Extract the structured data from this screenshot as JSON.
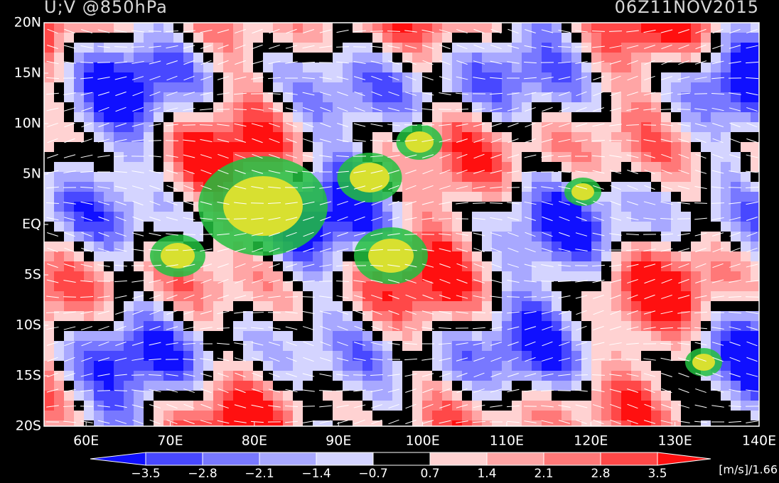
{
  "header": {
    "title": "U;V @850hPa",
    "time": "06Z11NOV2015"
  },
  "latitude_labels": [
    "20N",
    "15N",
    "10N",
    "5N",
    "EQ",
    "5S",
    "10S",
    "15S",
    "20S"
  ],
  "longitude_labels": [
    "60E",
    "70E",
    "80E",
    "90E",
    "100E",
    "110E",
    "120E",
    "130E",
    "140E"
  ],
  "colorbar": {
    "labels": [
      "−3.5",
      "−2.8",
      "−2.1",
      "−1.4",
      "−0.7",
      "0.7",
      "1.4",
      "2.1",
      "2.8",
      "3.5"
    ],
    "colors": [
      "#1010ff",
      "#4848ff",
      "#7878ff",
      "#a8a8ff",
      "#d4d4ff",
      "#000000",
      "#ffd2d2",
      "#ffa5a5",
      "#ff7878",
      "#ff4848",
      "#ff1010"
    ],
    "units": "[m/s]/1.66"
  }
}
